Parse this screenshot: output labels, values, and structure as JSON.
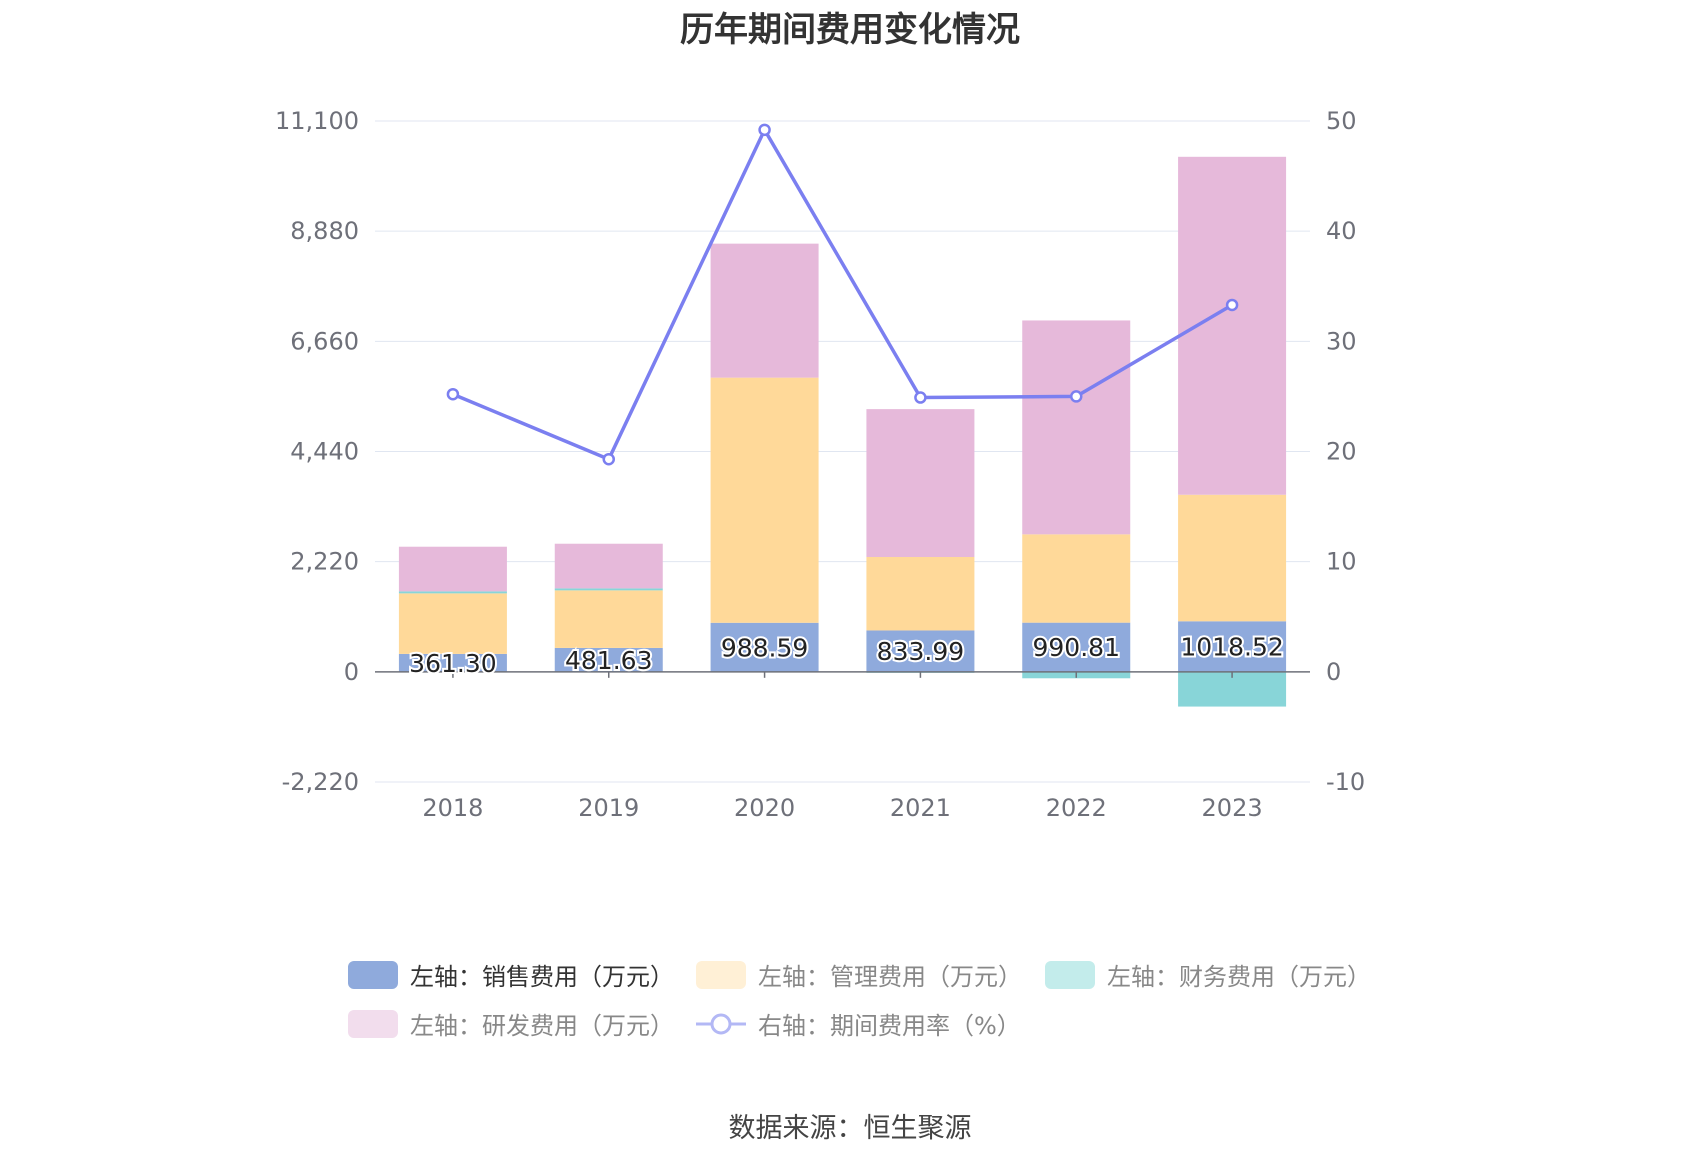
{
  "source": "数据来源：恒生聚源",
  "chart_data": {
    "type": "bar",
    "title": "历年期间费用变化情况",
    "categories": [
      "2018",
      "2019",
      "2020",
      "2021",
      "2022",
      "2023"
    ],
    "left_axis": {
      "ylim": [
        -2220,
        11100
      ],
      "ticks": [
        -2220,
        0,
        2220,
        4440,
        6660,
        8880,
        11100
      ],
      "tick_labels": [
        "-2,220",
        "0",
        "2,220",
        "4,440",
        "6,660",
        "8,880",
        "11,100"
      ]
    },
    "right_axis": {
      "ylim": [
        -10,
        50
      ],
      "ticks": [
        -10,
        0,
        10,
        20,
        30,
        40,
        50
      ],
      "tick_labels": [
        "-10",
        "0",
        "10",
        "20",
        "30",
        "40",
        "50"
      ]
    },
    "series": [
      {
        "name": "左轴：销售费用（万元）",
        "color": "#8faadc",
        "values": [
          361.3,
          481.63,
          988.59,
          833.99,
          990.81,
          1018.52
        ],
        "data_labels": [
          "361.30",
          "481.63",
          "988.59",
          "833.99",
          "990.81",
          "1018.52"
        ]
      },
      {
        "name": "左轴：管理费用（万元）",
        "color": "#ffd999",
        "values": [
          1220,
          1160,
          4940,
          1480,
          1780,
          2550
        ]
      },
      {
        "name": "左轴：财务费用（万元）",
        "color": "#88d5d8",
        "values": [
          40,
          40,
          0,
          -20,
          -130,
          -700
        ]
      },
      {
        "name": "左轴：研发费用（万元）",
        "color": "#e6b9da",
        "values": [
          900,
          900,
          2700,
          2980,
          4310,
          6810
        ]
      }
    ],
    "line_series": {
      "name": "右轴：期间费用率（%）",
      "color": "#7b7ff0",
      "values": [
        25.2,
        19.3,
        49.2,
        24.9,
        25.0,
        33.3
      ]
    }
  }
}
